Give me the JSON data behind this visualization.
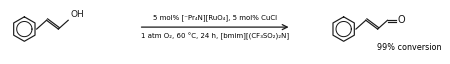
{
  "figsize": [
    4.5,
    0.64
  ],
  "dpi": 100,
  "bg_color": "#ffffff",
  "top_label": "5 mol% [⁻Pr₄N][RuO₄], 5 mol% CuCl",
  "bottom_label": "1 atm O₂, 60 °C, 24 h, [bmim][(CF₃SO₂)₂N]",
  "conversion_text": "99% conversion",
  "label_fontsize": 5.0,
  "conversion_fontsize": 5.8,
  "text_color": "#000000",
  "lw": 0.85,
  "bond_color": "#1a1a1a"
}
